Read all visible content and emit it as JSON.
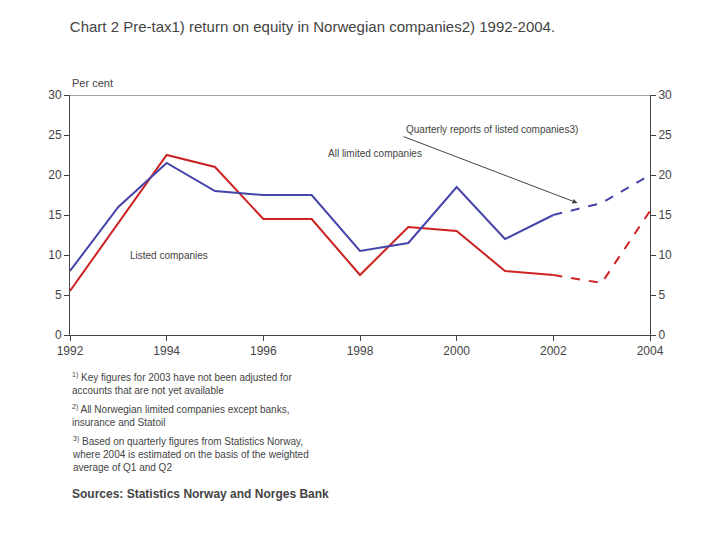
{
  "chart_data": {
    "type": "line",
    "title": "Chart 2 Pre-tax1) return on equity in Norwegian companies2) 1992-2004.",
    "ylabel": "Per cent",
    "series": [
      {
        "color": "#cc2222",
        "line_style": "solid",
        "x": [
          1992,
          1993,
          1994,
          1995,
          1996,
          1997,
          1998,
          1999,
          2000,
          2001,
          2002
        ],
        "values": [
          5.5,
          14.0,
          22.5,
          21.0,
          14.5,
          14.5,
          7.5,
          13.5,
          13.0,
          8.0,
          7.5
        ]
      },
      {
        "color": "#4444aa",
        "line_style": "solid",
        "x": [
          1992,
          1993,
          1994,
          1995,
          1996,
          1997,
          1998,
          1999,
          2000,
          2001,
          2002
        ],
        "values": [
          8.0,
          16.0,
          21.5,
          18.0,
          17.5,
          17.5,
          10.5,
          11.5,
          18.5,
          12.0,
          15.0
        ]
      },
      {
        "color": "#cc2222",
        "line_style": "dashed",
        "x": [
          2002,
          2003,
          2004
        ],
        "values": [
          7.5,
          6.5,
          15.5
        ]
      },
      {
        "color": "#4444aa",
        "line_style": "dashed",
        "x": [
          2002,
          2003,
          2004
        ],
        "values": [
          15.0,
          16.5,
          20.0
        ]
      }
    ],
    "xlim": [
      1992,
      2004
    ],
    "xticks": [
      1992,
      1994,
      1996,
      1998,
      2000,
      2002,
      2004
    ],
    "ylim": [
      0,
      30
    ],
    "yticks": [
      0,
      5,
      10,
      15,
      20,
      25,
      30
    ],
    "y2lim": [
      0,
      30
    ],
    "y2ticks": [
      0,
      5,
      10,
      15,
      20,
      25,
      30
    ],
    "grid": false,
    "annotations": [
      "Quarterly reports of listed companies3)",
      "All limited companies",
      "Listed companies"
    ],
    "footnotes": [
      {
        "marker": "1)",
        "text": "Key figures for 2003 have not been adjusted for\naccounts that are not yet available"
      },
      {
        "marker": "2)",
        "text": "All Norwegian limited companies except banks,\ninsurance and Statoil"
      },
      {
        "marker": "3)",
        "text": "Based on quarterly figures from Statistics Norway,\nwhere 2004 is estimated on the basis of the weighted\naverage of Q1 and Q2"
      }
    ],
    "source": "Sources: Statistics Norway and Norges Bank"
  }
}
